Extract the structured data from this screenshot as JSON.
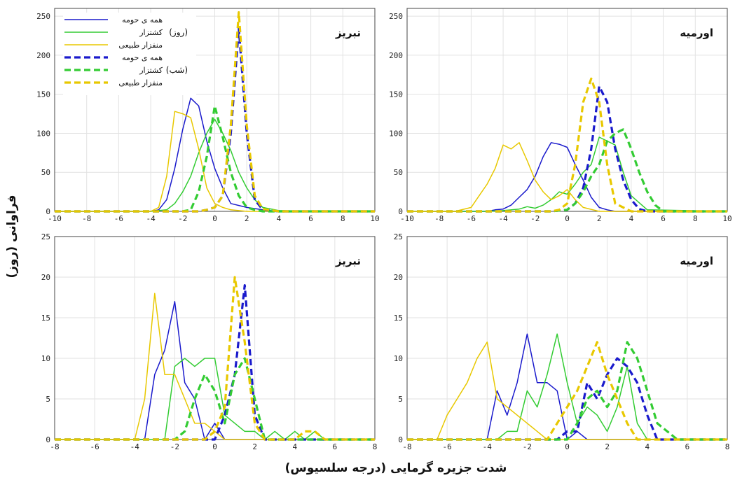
{
  "figure": {
    "xlabel": "شدت جزیره گرمایی (درجه سلسیوس)",
    "ylabel": "فراوانی (روز)"
  },
  "legend": {
    "day_group": "(روز)",
    "night_group": "(شب)",
    "entries": [
      {
        "label": "همه ی حومه",
        "color": "#1a1acc",
        "dash": false
      },
      {
        "label": "کشتزار",
        "color": "#33cc33",
        "dash": false
      },
      {
        "label": "منفزار طبیعی",
        "color": "#e8c800",
        "dash": false
      },
      {
        "label": "همه ی حومه",
        "color": "#1a1acc",
        "dash": true
      },
      {
        "label": "کشتزار",
        "color": "#33cc33",
        "dash": true
      },
      {
        "label": "منفزار طبیعی",
        "color": "#e8c800",
        "dash": true
      }
    ]
  },
  "chart_data": [
    {
      "type": "line",
      "title": "تبریز",
      "xlim": [
        -10,
        10
      ],
      "ylim": [
        0,
        260
      ],
      "xticks": [
        -10,
        -8,
        -6,
        -4,
        -2,
        0,
        2,
        4,
        6,
        8,
        10
      ],
      "yticks": [
        0,
        50,
        100,
        150,
        200,
        250
      ],
      "grid": true,
      "series": [
        {
          "name": "همه ی حومه (روز)",
          "color": "#1a1acc",
          "dash": false,
          "x": [
            -10,
            -6,
            -4,
            -3.5,
            -3,
            -2.5,
            -2,
            -1.5,
            -1,
            -0.5,
            0,
            0.5,
            1,
            2,
            3,
            4,
            6,
            10
          ],
          "y": [
            0,
            0,
            0,
            2,
            15,
            55,
            105,
            145,
            135,
            90,
            55,
            30,
            10,
            5,
            2,
            0,
            0,
            0
          ]
        },
        {
          "name": "کشتزار (روز)",
          "color": "#33cc33",
          "dash": false,
          "x": [
            -10,
            -6,
            -4,
            -3,
            -2.5,
            -2,
            -1.5,
            -1,
            -0.5,
            0,
            0.5,
            1,
            1.5,
            2,
            2.5,
            3,
            4,
            6,
            10
          ],
          "y": [
            0,
            0,
            0,
            2,
            10,
            25,
            45,
            75,
            100,
            118,
            100,
            78,
            50,
            30,
            15,
            5,
            1,
            0,
            0
          ]
        },
        {
          "name": "منفزار طبیعی (روز)",
          "color": "#e8c800",
          "dash": false,
          "x": [
            -10,
            -6,
            -4,
            -3.5,
            -3,
            -2.5,
            -2,
            -1.5,
            -1,
            -0.5,
            0,
            0.5,
            1,
            2,
            3,
            4,
            10
          ],
          "y": [
            0,
            0,
            0,
            5,
            45,
            128,
            125,
            120,
            80,
            30,
            10,
            5,
            2,
            0,
            0,
            0,
            0
          ]
        },
        {
          "name": "همه ی حومه (شب)",
          "color": "#1a1acc",
          "dash": true,
          "x": [
            -10,
            -1,
            -0.5,
            0,
            0.5,
            1,
            1.5,
            2,
            2.5,
            3,
            4,
            10
          ],
          "y": [
            0,
            0,
            2,
            5,
            20,
            100,
            235,
            100,
            15,
            2,
            0,
            0
          ]
        },
        {
          "name": "کشتزار (شب)",
          "color": "#33cc33",
          "dash": true,
          "x": [
            -10,
            -2,
            -1.5,
            -1,
            -0.5,
            0,
            0.5,
            1,
            1.5,
            2,
            2.5,
            3,
            4,
            10
          ],
          "y": [
            0,
            0,
            2,
            25,
            70,
            135,
            95,
            50,
            20,
            5,
            2,
            0,
            0,
            0
          ]
        },
        {
          "name": "منفزار طبیعی (شب)",
          "color": "#e8c800",
          "dash": true,
          "x": [
            -10,
            -1,
            -0.5,
            0,
            0.5,
            1,
            1.5,
            2,
            2.5,
            3,
            4,
            10
          ],
          "y": [
            0,
            0,
            2,
            5,
            20,
            110,
            255,
            110,
            20,
            3,
            0,
            0
          ]
        }
      ]
    },
    {
      "type": "line",
      "title": "اورمیه",
      "xlim": [
        -10,
        10
      ],
      "ylim": [
        0,
        260
      ],
      "xticks": [
        -10,
        -8,
        -6,
        -4,
        -2,
        0,
        2,
        4,
        6,
        8,
        10
      ],
      "yticks": [
        0,
        50,
        100,
        150,
        200,
        250
      ],
      "grid": true,
      "series": [
        {
          "name": "همه ی حومه (روز)",
          "color": "#1a1acc",
          "dash": false,
          "x": [
            -10,
            -6,
            -5,
            -4.5,
            -4,
            -3.5,
            -3,
            -2.5,
            -2,
            -1.5,
            -1,
            -0.5,
            0,
            0.5,
            1,
            1.5,
            2,
            2.5,
            3,
            4,
            10
          ],
          "y": [
            0,
            0,
            0,
            2,
            3,
            8,
            18,
            28,
            45,
            70,
            88,
            86,
            82,
            60,
            40,
            18,
            5,
            2,
            0,
            0,
            0
          ]
        },
        {
          "name": "کشتزار (روز)",
          "color": "#33cc33",
          "dash": false,
          "x": [
            -10,
            -5,
            -4,
            -3,
            -2.5,
            -2,
            -1.5,
            -1,
            -0.5,
            0,
            0.5,
            1,
            1.5,
            2,
            2.5,
            3,
            3.5,
            4,
            5,
            10
          ],
          "y": [
            0,
            0,
            1,
            3,
            6,
            4,
            8,
            15,
            25,
            22,
            35,
            50,
            60,
            95,
            90,
            85,
            50,
            20,
            2,
            0
          ]
        },
        {
          "name": "منفزار طبیعی (روز)",
          "color": "#e8c800",
          "dash": false,
          "x": [
            -10,
            -7,
            -6,
            -5.5,
            -5,
            -4.5,
            -4,
            -3.5,
            -3,
            -2.5,
            -2,
            -1.5,
            -1,
            -0.5,
            0,
            0.5,
            1,
            2,
            10
          ],
          "y": [
            0,
            0,
            5,
            20,
            35,
            55,
            85,
            80,
            88,
            65,
            40,
            25,
            15,
            20,
            28,
            15,
            5,
            0,
            0
          ]
        },
        {
          "name": "همه ی حومه (شب)",
          "color": "#1a1acc",
          "dash": true,
          "x": [
            -10,
            -1,
            0,
            0.5,
            1,
            1.5,
            2,
            2.5,
            3,
            3.5,
            4,
            4.5,
            5,
            10
          ],
          "y": [
            0,
            0,
            2,
            10,
            30,
            80,
            160,
            140,
            80,
            40,
            15,
            3,
            0,
            0
          ]
        },
        {
          "name": "کشتزار (شب)",
          "color": "#33cc33",
          "dash": true,
          "x": [
            -10,
            -1,
            0,
            0.5,
            1,
            1.5,
            2,
            2.5,
            3,
            3.5,
            4,
            4.5,
            5,
            5.5,
            6,
            10
          ],
          "y": [
            0,
            0,
            2,
            10,
            25,
            45,
            60,
            90,
            100,
            105,
            80,
            50,
            25,
            8,
            0,
            0
          ]
        },
        {
          "name": "منفزار طبیعی (شب)",
          "color": "#e8c800",
          "dash": true,
          "x": [
            -10,
            -1,
            -0.5,
            0,
            0.5,
            1,
            1.5,
            2,
            2.5,
            3,
            4,
            10
          ],
          "y": [
            0,
            0,
            2,
            10,
            60,
            140,
            170,
            140,
            60,
            10,
            0,
            0
          ]
        }
      ]
    },
    {
      "type": "line",
      "title": "تبریز",
      "xlim": [
        -8,
        8
      ],
      "ylim": [
        0,
        25
      ],
      "xticks": [
        -8,
        -6,
        -4,
        -2,
        0,
        2,
        4,
        6,
        8
      ],
      "yticks": [
        0,
        5,
        10,
        15,
        20,
        25
      ],
      "grid": true,
      "series": [
        {
          "name": "همه ی حومه (روز)",
          "color": "#1a1acc",
          "dash": false,
          "x": [
            -8,
            -4,
            -3.5,
            -3,
            -2.5,
            -2,
            -1.5,
            -1,
            -0.5,
            0,
            0.5,
            8
          ],
          "y": [
            0,
            0,
            0,
            8,
            11,
            17,
            7,
            5,
            0,
            2,
            0,
            0
          ]
        },
        {
          "name": "کشتزار (روز)",
          "color": "#33cc33",
          "dash": false,
          "x": [
            -8,
            -3,
            -2.5,
            -2,
            -1.5,
            -1,
            -0.5,
            0,
            0.5,
            1,
            1.5,
            2,
            2.5,
            3,
            3.5,
            4,
            4.5,
            5,
            5.5,
            6,
            6.5,
            7,
            8
          ],
          "y": [
            0,
            0,
            0,
            9,
            10,
            9,
            10,
            10,
            3,
            2,
            1,
            1,
            0,
            1,
            0,
            1,
            0,
            1,
            0,
            0,
            0,
            0,
            0
          ]
        },
        {
          "name": "منفزار طبیعی (روز)",
          "color": "#e8c800",
          "dash": false,
          "x": [
            -8,
            -4,
            -3.5,
            -3,
            -2.5,
            -2,
            -1.5,
            -1,
            -0.5,
            0,
            0.5,
            8
          ],
          "y": [
            0,
            0,
            5,
            18,
            8,
            8,
            5,
            2,
            2,
            1,
            0,
            0
          ]
        },
        {
          "name": "همه ی حومه (شب)",
          "color": "#1a1acc",
          "dash": true,
          "x": [
            -8,
            0,
            0.5,
            1,
            1.5,
            2,
            2.5,
            8
          ],
          "y": [
            0,
            0,
            3,
            8,
            19,
            3,
            0,
            0
          ]
        },
        {
          "name": "کشتزار (شب)",
          "color": "#33cc33",
          "dash": true,
          "x": [
            -8,
            -2,
            -1.5,
            -1,
            -0.5,
            0,
            0.5,
            1,
            1.5,
            2,
            2.5,
            8
          ],
          "y": [
            0,
            0,
            1,
            5,
            8,
            6,
            2,
            8,
            10,
            5,
            0,
            0
          ]
        },
        {
          "name": "منفزار طبیعی (شب)",
          "color": "#e8c800",
          "dash": true,
          "x": [
            -8,
            -0.5,
            0,
            0.5,
            1,
            1.5,
            2,
            2.5,
            4,
            4.5,
            5,
            5.5,
            6,
            8
          ],
          "y": [
            0,
            0,
            1,
            4,
            20,
            12,
            2,
            0,
            0,
            1,
            1,
            0,
            0,
            0
          ]
        }
      ]
    },
    {
      "type": "line",
      "title": "اورمیه",
      "xlim": [
        -8,
        8
      ],
      "ylim": [
        0,
        25
      ],
      "xticks": [
        -8,
        -6,
        -4,
        -2,
        0,
        2,
        4,
        6,
        8
      ],
      "yticks": [
        0,
        5,
        10,
        15,
        20,
        25
      ],
      "grid": true,
      "series": [
        {
          "name": "همه ی حومه (روز)",
          "color": "#1a1acc",
          "dash": false,
          "x": [
            -8,
            -4,
            -3.5,
            -3,
            -2.5,
            -2,
            -1.5,
            -1,
            -0.5,
            0,
            0.5,
            1,
            8
          ],
          "y": [
            0,
            0,
            6,
            3,
            7,
            13,
            7,
            7,
            6,
            0,
            1,
            0,
            0
          ]
        },
        {
          "name": "کشتزار (روز)",
          "color": "#33cc33",
          "dash": false,
          "x": [
            -8,
            -4,
            -3.5,
            -3,
            -2.5,
            -2,
            -1.5,
            -1,
            -0.5,
            0,
            0.5,
            1,
            1.5,
            2,
            2.5,
            3,
            3.5,
            4,
            8
          ],
          "y": [
            0,
            0,
            0,
            1,
            1,
            6,
            4,
            8,
            13,
            7,
            2,
            4,
            3,
            1,
            4,
            9,
            2,
            0,
            0
          ]
        },
        {
          "name": "منفزار طبیعی (روز)",
          "color": "#e8c800",
          "dash": false,
          "x": [
            -8,
            -6.5,
            -6,
            -5.5,
            -5,
            -4.5,
            -4,
            -3.5,
            -3,
            -2.5,
            -2,
            -1.5,
            -1,
            -0.5,
            8
          ],
          "y": [
            0,
            0,
            3,
            5,
            7,
            10,
            12,
            5,
            4,
            3,
            2,
            1,
            0,
            0,
            0
          ]
        },
        {
          "name": "همه ی حومه (شب)",
          "color": "#1a1acc",
          "dash": true,
          "x": [
            -8,
            -0.5,
            0,
            0.5,
            1,
            1.5,
            2,
            2.5,
            3,
            3.5,
            4,
            4.5,
            8
          ],
          "y": [
            0,
            0,
            1,
            1,
            7,
            5,
            8,
            10,
            9,
            7,
            3,
            0,
            0
          ]
        },
        {
          "name": "کشتزار (شب)",
          "color": "#33cc33",
          "dash": true,
          "x": [
            -8,
            -1,
            0,
            0.5,
            1,
            1.5,
            2,
            2.5,
            3,
            3.5,
            4,
            4.5,
            5,
            5.5,
            8
          ],
          "y": [
            0,
            0,
            0,
            2,
            5,
            6,
            4,
            6,
            12,
            10,
            6,
            2,
            1,
            0,
            0
          ]
        },
        {
          "name": "منفزار طبیعی (شب)",
          "color": "#e8c800",
          "dash": true,
          "x": [
            -8,
            -1,
            -0.5,
            0,
            0.5,
            1,
            1.5,
            2,
            2.5,
            3,
            3.5,
            4,
            8
          ],
          "y": [
            0,
            0,
            2,
            4,
            6,
            9,
            12,
            8,
            5,
            2,
            0,
            0,
            0
          ]
        }
      ]
    }
  ]
}
